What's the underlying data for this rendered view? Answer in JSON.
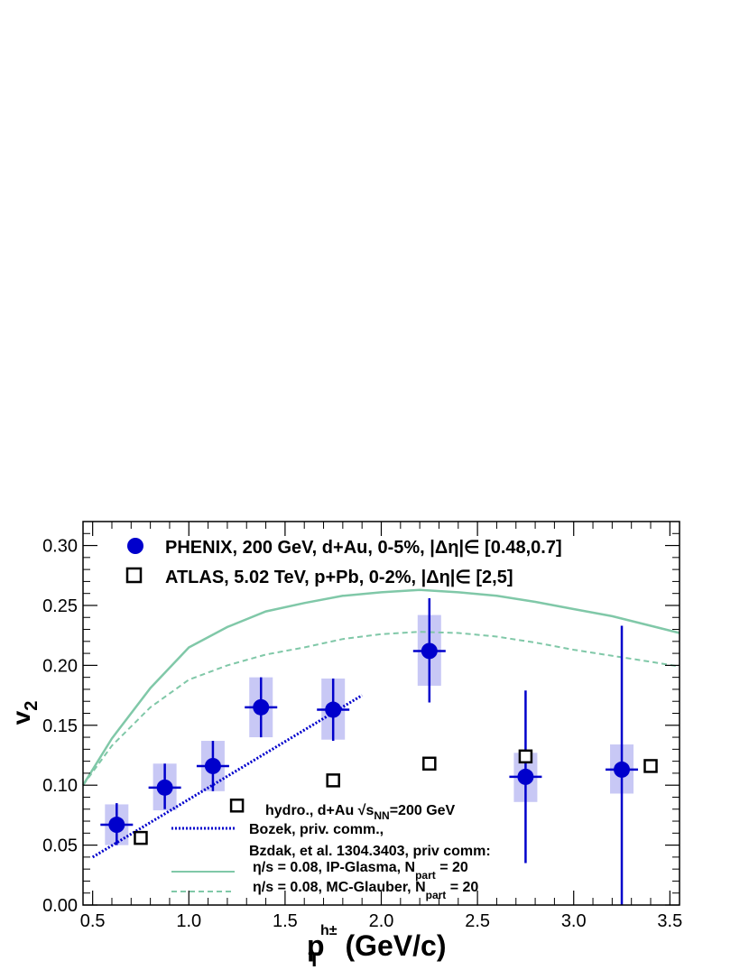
{
  "chart_data": {
    "type": "scatter",
    "xlabel": {
      "main": "p",
      "sub": "T",
      "sup": "h±",
      "unit": " (GeV/c)"
    },
    "ylabel": {
      "main": "v",
      "sub": "2"
    },
    "xlim": [
      0.45,
      3.55
    ],
    "ylim": [
      0.0,
      0.32
    ],
    "x_ticks": [
      "0.5",
      "1.0",
      "1.5",
      "2.0",
      "2.5",
      "3.0",
      "3.5"
    ],
    "y_ticks": [
      "0.00",
      "0.05",
      "0.10",
      "0.15",
      "0.20",
      "0.25",
      "0.30"
    ],
    "grid": false,
    "series": [
      {
        "name": "PHENIX, 200 GeV, d+Au, 0-5%, |Δη|∈ [0.48,0.7]",
        "marker": "filled-circle",
        "color": "#0000cc",
        "syst_color": "#c8c8f5",
        "points": [
          {
            "x": 0.625,
            "y": 0.067,
            "stat": [
              0.05,
              0.085
            ],
            "syst": [
              0.05,
              0.084
            ]
          },
          {
            "x": 0.875,
            "y": 0.098,
            "stat": [
              0.08,
              0.118
            ],
            "syst": [
              0.079,
              0.118
            ]
          },
          {
            "x": 1.125,
            "y": 0.116,
            "stat": [
              0.095,
              0.137
            ],
            "syst": [
              0.095,
              0.137
            ]
          },
          {
            "x": 1.375,
            "y": 0.165,
            "stat": [
              0.14,
              0.19
            ],
            "syst": [
              0.14,
              0.19
            ]
          },
          {
            "x": 1.75,
            "y": 0.163,
            "stat": [
              0.137,
              0.189
            ],
            "syst": [
              0.138,
              0.189
            ]
          },
          {
            "x": 2.25,
            "y": 0.212,
            "stat": [
              0.169,
              0.256
            ],
            "syst": [
              0.183,
              0.242
            ]
          },
          {
            "x": 2.75,
            "y": 0.107,
            "stat": [
              0.035,
              0.179
            ],
            "syst": [
              0.086,
              0.127
            ]
          },
          {
            "x": 3.25,
            "y": 0.113,
            "stat": [
              0.0,
              0.233
            ],
            "syst": [
              0.093,
              0.134
            ]
          }
        ]
      },
      {
        "name": "ATLAS, 5.02 TeV, p+Pb, 0-2%, |Δη|∈ [2,5]",
        "marker": "open-square",
        "color": "#000000",
        "points": [
          {
            "x": 0.75,
            "y": 0.056
          },
          {
            "x": 1.25,
            "y": 0.083
          },
          {
            "x": 1.75,
            "y": 0.104
          },
          {
            "x": 2.25,
            "y": 0.118
          },
          {
            "x": 2.75,
            "y": 0.124
          },
          {
            "x": 3.4,
            "y": 0.116
          }
        ]
      },
      {
        "name": "Bozek, priv. comm.,",
        "style": "dotted",
        "color": "#0000cc",
        "x": [
          0.5,
          1.9
        ],
        "y": [
          0.04,
          0.175
        ]
      },
      {
        "name": "η/s = 0.08, IP-Glasma, N = 20",
        "style": "solid",
        "color": "#80c8a8",
        "x": [
          0.45,
          0.6,
          0.8,
          1.0,
          1.2,
          1.4,
          1.6,
          1.8,
          2.0,
          2.2,
          2.4,
          2.6,
          2.8,
          3.0,
          3.2,
          3.4,
          3.55
        ],
        "y": [
          0.1,
          0.139,
          0.181,
          0.215,
          0.232,
          0.245,
          0.252,
          0.258,
          0.261,
          0.263,
          0.261,
          0.258,
          0.253,
          0.247,
          0.241,
          0.233,
          0.227
        ]
      },
      {
        "name": "η/s = 0.08, MC-Glauber, N = 20",
        "style": "dashed",
        "color": "#80c8a8",
        "x": [
          0.45,
          0.6,
          0.8,
          1.0,
          1.2,
          1.4,
          1.6,
          1.8,
          2.0,
          2.2,
          2.4,
          2.6,
          2.8,
          3.0,
          3.2,
          3.4,
          3.55
        ],
        "y": [
          0.1,
          0.133,
          0.165,
          0.188,
          0.2,
          0.209,
          0.215,
          0.222,
          0.226,
          0.228,
          0.227,
          0.224,
          0.219,
          0.213,
          0.208,
          0.203,
          0.199
        ]
      }
    ],
    "legend_top": [
      {
        "series": 0,
        "text": "PHENIX, 200 GeV, d+Au, 0-5%, |Δη|∈ [0.48,0.7]"
      },
      {
        "series": 1,
        "text": "ATLAS, 5.02 TeV, p+Pb, 0-2%, |Δη|∈ [2,5]"
      }
    ],
    "legend_bottom": {
      "header": "hydro., d+Au √s",
      "header_sub": "NN",
      "header_tail": "=200 GeV",
      "bozek": "Bozek, priv. comm.,",
      "bzdak": "Bzdak, et al. 1304.3403, priv comm:",
      "ipglasma": "η/s = 0.08, IP-Glasma, N",
      "ipglasma_sub": "part",
      "ipglasma_tail": " = 20",
      "mcglauber": "η/s = 0.08, MC-Glauber, N",
      "mcglauber_sub": "part",
      "mcglauber_tail": " = 20"
    }
  }
}
